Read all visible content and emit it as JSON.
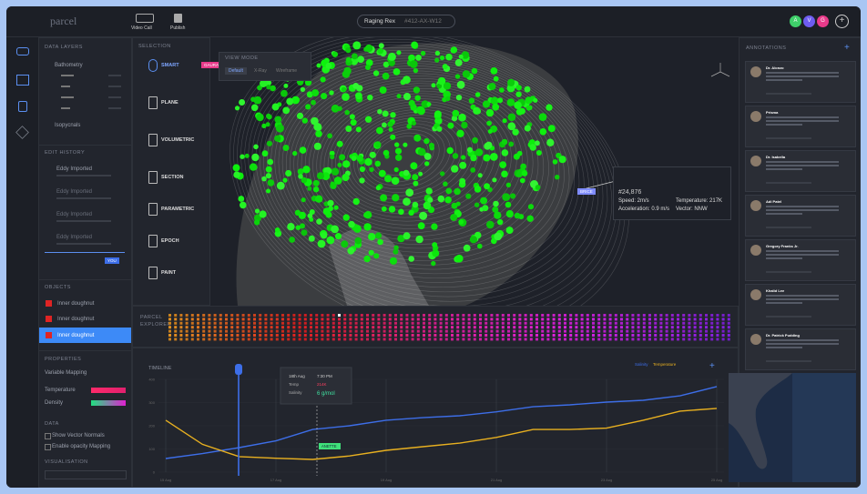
{
  "topbar": {
    "logo": "parcel",
    "actions": [
      "Video Call",
      "Publish"
    ],
    "project": "Raging Rex",
    "project_id": "#412-AX-W12",
    "avatars": [
      "A",
      "V",
      "G"
    ]
  },
  "data_layers": {
    "title": "DATA LAYERS",
    "items": [
      "Bathometry",
      "Isopycnals"
    ]
  },
  "edit_history": {
    "title": "EDIT HISTORY",
    "items": [
      "Eddy Imported",
      "Eddy Imported",
      "Eddy Imported",
      "Eddy Imported"
    ],
    "cursor": "YOU"
  },
  "objects": {
    "title": "OBJECTS",
    "items": [
      "Inner doughnut",
      "Inner doughnut",
      "Inner doughnut"
    ]
  },
  "properties": {
    "title": "PROPERTIES",
    "mapping": "Variable Mapping",
    "variables": [
      "Temperature",
      "Density"
    ],
    "data_title": "DATA",
    "options": [
      "Show Vector Normals",
      "Enable opacity Mapping"
    ],
    "vis_title": "VISUALISATION"
  },
  "selection": {
    "title": "SELECTION",
    "tools": [
      "SMART",
      "PLANE",
      "VOLUMETRIC",
      "SECTION",
      "PARAMETRIC",
      "EPOCH",
      "PAINT"
    ],
    "cursor": "GAURAV"
  },
  "view": {
    "title": "VIEW MODE",
    "modes": [
      "Default",
      "X-Ray",
      "Wireframe"
    ],
    "cursor": "BRICE",
    "tooltip": {
      "id": "#24,876",
      "fields": [
        "Speed: 2m/s",
        "Temperature: 217K",
        "Acceleration: 0.9 m/s",
        "Vector: NNW"
      ]
    }
  },
  "explorer": {
    "title": "PARCEL EXPLORER"
  },
  "annotations": {
    "title": "ANNOTATIONS",
    "items": [
      "Dr. Alonzo",
      "Prisma",
      "Dr. Isabella",
      "Adi Patel",
      "Gregory Franks Jr.",
      "Khalid Lee",
      "Dr. Patrick Pudding"
    ]
  },
  "timeline": {
    "type": "line",
    "title": "TIMELINE",
    "categories": [
      "15 Aug",
      null,
      null,
      "17 Aug",
      null,
      null,
      "19 Aug",
      null,
      null,
      "21 Aug",
      null,
      null,
      "23 Aug",
      null,
      null,
      "25 Aug"
    ],
    "ylim": [
      0,
      400
    ],
    "yticks": [
      0,
      100,
      200,
      300,
      400
    ],
    "series": [
      {
        "name": "Salinity",
        "color": "#3d6ee8",
        "values": [
          59,
          80,
          106,
          135,
          184,
          200,
          224,
          235,
          243,
          260,
          282,
          290,
          302,
          310,
          329,
          369
        ]
      },
      {
        "name": "Temperature",
        "color": "#e8b020",
        "values": [
          224,
          120,
          67,
          60,
          55,
          70,
          94,
          110,
          125,
          150,
          184,
          184,
          190,
          224,
          263,
          275
        ]
      }
    ],
    "tooltip": {
      "date": "18th Aug",
      "time": "7:30 PM",
      "rows": [
        [
          "Temp",
          "214K"
        ],
        [
          "Salinity",
          "6 g/mol"
        ]
      ]
    },
    "cursor": "ANETTE"
  }
}
